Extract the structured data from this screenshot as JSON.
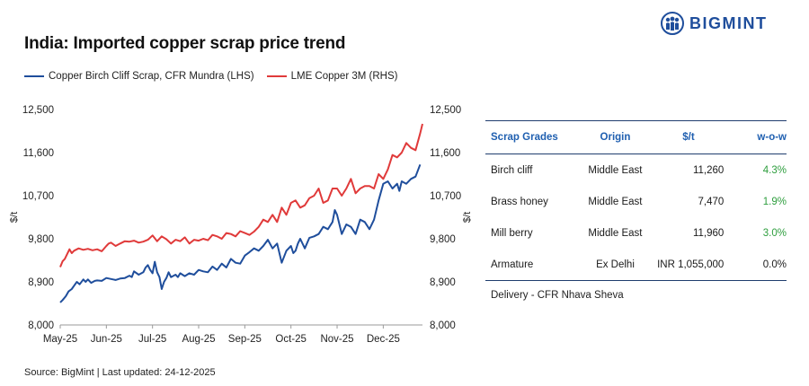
{
  "title": "India: Imported copper scrap price trend",
  "logo": {
    "text": "BIGMINT",
    "icon": "bigmint-people-icon",
    "color": "#1f4e9c"
  },
  "source": "Source: BigMint | Last updated: 24-12-2025",
  "chart_data": {
    "type": "line",
    "x_tick_labels": [
      "May-25",
      "Jun-25",
      "Jul-25",
      "Aug-25",
      "Sep-25",
      "Oct-25",
      "Nov-25",
      "Dec-25"
    ],
    "y_left_label": "$/t",
    "y_right_label": "$/t",
    "y_left_ticks": [
      "12,500",
      "11,600",
      "10,700",
      "9,800",
      "8,900",
      "8,000"
    ],
    "y_right_ticks": [
      "12,500",
      "11,600",
      "10,700",
      "9,800",
      "8,900",
      "8,000"
    ],
    "ylim_left": [
      8000,
      12500
    ],
    "ylim_right": [
      8000,
      12500
    ],
    "x_range_months": [
      0,
      7.85
    ],
    "grid": false,
    "legend_position": "top-left",
    "series": [
      {
        "name": "Copper Birch Cliff Scrap, CFR Mundra (LHS)",
        "color": "#1f4e9c",
        "axis": "left",
        "x": [
          0,
          0.05,
          0.12,
          0.18,
          0.25,
          0.3,
          0.36,
          0.42,
          0.5,
          0.55,
          0.6,
          0.67,
          0.75,
          0.8,
          0.9,
          1.0,
          1.1,
          1.2,
          1.3,
          1.4,
          1.5,
          1.55,
          1.6,
          1.7,
          1.8,
          1.85,
          1.9,
          1.95,
          2.0,
          2.05,
          2.1,
          2.15,
          2.2,
          2.25,
          2.3,
          2.35,
          2.4,
          2.5,
          2.55,
          2.6,
          2.65,
          2.7,
          2.8,
          2.9,
          3.0,
          3.1,
          3.2,
          3.3,
          3.4,
          3.5,
          3.6,
          3.7,
          3.8,
          3.9,
          4.0,
          4.1,
          4.2,
          4.3,
          4.4,
          4.5,
          4.6,
          4.7,
          4.8,
          4.9,
          5.0,
          5.05,
          5.1,
          5.15,
          5.2,
          5.3,
          5.4,
          5.5,
          5.6,
          5.7,
          5.8,
          5.9,
          5.95,
          6.0,
          6.1,
          6.2,
          6.3,
          6.4,
          6.5,
          6.6,
          6.7,
          6.8,
          6.9,
          7.0,
          7.1,
          7.2,
          7.3,
          7.35,
          7.4,
          7.5,
          7.6,
          7.7,
          7.8
        ],
        "values": [
          8470,
          8520,
          8600,
          8700,
          8750,
          8820,
          8900,
          8850,
          8950,
          8900,
          8950,
          8880,
          8920,
          8930,
          8920,
          8980,
          8960,
          8940,
          8970,
          8980,
          9030,
          9000,
          9120,
          9050,
          9100,
          9200,
          9250,
          9150,
          9080,
          9320,
          9100,
          9000,
          8750,
          8900,
          8980,
          9100,
          9000,
          9050,
          9000,
          9080,
          9050,
          9020,
          9080,
          9050,
          9150,
          9120,
          9100,
          9220,
          9150,
          9280,
          9200,
          9380,
          9300,
          9280,
          9450,
          9520,
          9600,
          9550,
          9650,
          9780,
          9600,
          9700,
          9300,
          9550,
          9650,
          9500,
          9550,
          9700,
          9800,
          9600,
          9820,
          9850,
          9900,
          10050,
          10000,
          10150,
          10400,
          10300,
          9900,
          10100,
          10050,
          9900,
          10200,
          10150,
          10000,
          10200,
          10600,
          10950,
          11000,
          10850,
          10950,
          10800,
          11000,
          10950,
          11050,
          11100,
          11350
        ]
      },
      {
        "name": "LME Copper 3M (RHS)",
        "color": "#e03a3a",
        "axis": "right",
        "x": [
          0,
          0.05,
          0.1,
          0.15,
          0.2,
          0.25,
          0.3,
          0.4,
          0.5,
          0.6,
          0.7,
          0.8,
          0.9,
          1.0,
          1.05,
          1.1,
          1.2,
          1.3,
          1.4,
          1.5,
          1.6,
          1.7,
          1.8,
          1.9,
          2.0,
          2.1,
          2.2,
          2.3,
          2.4,
          2.5,
          2.6,
          2.7,
          2.8,
          2.9,
          3.0,
          3.1,
          3.2,
          3.3,
          3.4,
          3.5,
          3.6,
          3.7,
          3.8,
          3.9,
          4.0,
          4.1,
          4.2,
          4.3,
          4.4,
          4.5,
          4.6,
          4.7,
          4.8,
          4.9,
          5.0,
          5.1,
          5.2,
          5.3,
          5.4,
          5.5,
          5.6,
          5.7,
          5.8,
          5.9,
          6.0,
          6.1,
          6.2,
          6.3,
          6.4,
          6.5,
          6.6,
          6.7,
          6.8,
          6.9,
          7.0,
          7.1,
          7.2,
          7.3,
          7.4,
          7.5,
          7.6,
          7.7,
          7.8,
          7.85
        ],
        "values": [
          9210,
          9330,
          9380,
          9480,
          9580,
          9500,
          9550,
          9600,
          9570,
          9590,
          9560,
          9580,
          9540,
          9650,
          9700,
          9720,
          9650,
          9700,
          9750,
          9740,
          9760,
          9720,
          9740,
          9780,
          9870,
          9750,
          9850,
          9790,
          9700,
          9780,
          9750,
          9830,
          9700,
          9780,
          9760,
          9800,
          9770,
          9880,
          9850,
          9800,
          9920,
          9900,
          9850,
          9960,
          9920,
          9880,
          9950,
          10050,
          10200,
          10150,
          10300,
          10150,
          10450,
          10300,
          10550,
          10600,
          10450,
          10500,
          10650,
          10700,
          10850,
          10550,
          10600,
          10850,
          10850,
          10700,
          10850,
          11050,
          10750,
          10850,
          10900,
          10900,
          10850,
          11150,
          11050,
          11250,
          11550,
          11500,
          11600,
          11800,
          11700,
          11650,
          12000,
          12200
        ]
      }
    ]
  },
  "table": {
    "headers": [
      "Scrap Grades",
      "Origin",
      "$/t",
      "w-o-w"
    ],
    "rows": [
      {
        "grade": "Birch cliff",
        "origin": "Middle East",
        "price": "11,260",
        "wow": "4.3%"
      },
      {
        "grade": "Brass honey",
        "origin": "Middle East",
        "price": "7,470",
        "wow": "1.9%"
      },
      {
        "grade": "Mill berry",
        "origin": "Middle East",
        "price": "11,960",
        "wow": "3.0%"
      },
      {
        "grade": "Armature",
        "origin": "Ex Delhi",
        "price": "INR 1,055,000",
        "wow": "0.0%"
      }
    ],
    "note": "Delivery - CFR Nhava Sheva",
    "positive_color": "#2e9e3e"
  }
}
